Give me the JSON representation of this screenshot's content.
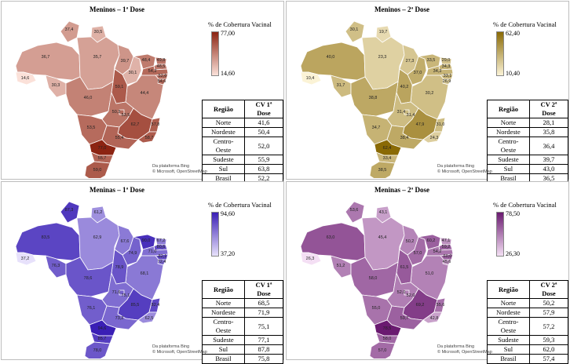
{
  "legend_title": "% de Cobertura Vacinal",
  "credit_line1": "Da plataforma Bing",
  "credit_line2": "© Microsoft, OpenStreetMap",
  "table_header_region": "Região",
  "panels": [
    {
      "title": "Meninos –  1ª Dose",
      "legend_max": "77,00",
      "legend_min": "14,60",
      "color_dark": "#8c2412",
      "color_light": "#fbe1d9",
      "table_header_cv": "CV 1ª Dose",
      "rows": [
        {
          "region": "Norte",
          "value": "41,6"
        },
        {
          "region": "Nordeste",
          "value": "50,4"
        },
        {
          "region": "Centro-Oeste",
          "value": "52,0"
        },
        {
          "region": "Sudeste",
          "value": "55,9"
        },
        {
          "region": "Sul",
          "value": "63,8"
        },
        {
          "region": "Brasil",
          "value": "52,2"
        }
      ],
      "state_values": {
        "RR": "37,4",
        "AP": "30,5",
        "AM": "36,7",
        "PA": "35,7",
        "AC": "14,6",
        "RO": "30,3",
        "MA": "39,7",
        "PI": "30,1",
        "CE": "48,4",
        "RN": "49,8",
        "PB": "48,5",
        "PE": "54,3",
        "AL": "52,6",
        "SE": "54,6",
        "BA": "44,4",
        "TO": "59,1",
        "MT": "46,0",
        "GO": "50,3",
        "DF": "53,5",
        "MS": "53,5",
        "MG": "62,7",
        "ES": "57,8",
        "RJ": "58,7",
        "SP": "55,4",
        "PR": "77,0",
        "SC": "55,7",
        "RS": "59,0"
      }
    },
    {
      "title": "Meninos –  2ª Dose",
      "legend_max": "62,40",
      "legend_min": "10,40",
      "color_dark": "#8a6a05",
      "color_light": "#fbf3d6",
      "table_header_cv": "CV 2ª Dose",
      "rows": [
        {
          "region": "Norte",
          "value": "28,1"
        },
        {
          "region": "Nordeste",
          "value": "35,8"
        },
        {
          "region": "Centro-Oeste",
          "value": "36,4"
        },
        {
          "region": "Sudeste",
          "value": "39,7"
        },
        {
          "region": "Sul",
          "value": "43,0"
        },
        {
          "region": "Brasil",
          "value": "36,5"
        }
      ],
      "state_values": {
        "RR": "30,1",
        "AP": "19,7",
        "AM": "40,0",
        "PA": "23,3",
        "AC": "10,4",
        "RO": "31,7",
        "MA": "27,3",
        "PI": "37,0",
        "CE": "33,5",
        "RN": "29,0",
        "PB": "34,3",
        "PE": "34,3",
        "AL": "33,1",
        "SE": "26,9",
        "BA": "30,2",
        "TO": "40,2",
        "MT": "38,8",
        "GO": "31,4",
        "DF": "31,4",
        "MS": "34,7",
        "MG": "47,9",
        "ES": "31,0",
        "RJ": "24,3",
        "SP": "38,4",
        "PR": "62,4",
        "SC": "33,4",
        "RS": "38,5"
      }
    },
    {
      "title": "Meninas –  1ª Dose",
      "legend_max": "94,60",
      "legend_min": "37,20",
      "color_dark": "#3a1fb5",
      "color_light": "#e7e1fb",
      "table_header_cv": "CV 1ª Dose",
      "rows": [
        {
          "region": "Norte",
          "value": "68,5"
        },
        {
          "region": "Nordeste",
          "value": "71,9"
        },
        {
          "region": "Centro-Oeste",
          "value": "75,1"
        },
        {
          "region": "Sudeste",
          "value": "77,1"
        },
        {
          "region": "Sul",
          "value": "87,8"
        },
        {
          "region": "Brasil",
          "value": "75,8"
        }
      ],
      "state_values": {
        "RR": "87,3",
        "AP": "61,2",
        "AM": "83,5",
        "PA": "62,9",
        "AC": "37,2",
        "RO": "76,3",
        "MA": "67,6",
        "PI": "74,9",
        "CE": "90,0",
        "RN": "67,2",
        "PB": "80,6",
        "PE": "71,0",
        "AL": "82,1",
        "SE": "72,4",
        "BA": "68,1",
        "TO": "78,9",
        "MT": "78,6",
        "GO": "71,6",
        "DF": "75,1",
        "MS": "76,1",
        "MG": "85,5",
        "ES": "82,4",
        "RJ": "62,5",
        "SP": "73,2",
        "PR": "94,6",
        "SC": "85,7",
        "RS": "78,0"
      }
    },
    {
      "title": "Meninas –  2ª Dose",
      "legend_max": "78,50",
      "legend_min": "26,30",
      "color_dark": "#6a1a70",
      "color_light": "#f4dff4",
      "table_header_cv": "CV 2ª Dose",
      "rows": [
        {
          "region": "Norte",
          "value": "50,2"
        },
        {
          "region": "Nordeste",
          "value": "57,9"
        },
        {
          "region": "Centro-Oeste",
          "value": "57,2"
        },
        {
          "region": "Sudeste",
          "value": "59,3"
        },
        {
          "region": "Sul",
          "value": "62,0"
        },
        {
          "region": "Brasil",
          "value": "57,4"
        }
      ],
      "state_values": {
        "RR": "53,6",
        "AP": "43,1",
        "AM": "63,0",
        "PA": "45,4",
        "AC": "26,3",
        "RO": "51,2",
        "MA": "50,2",
        "PI": "57,0",
        "CE": "60,2",
        "RN": "47,1",
        "PB": "59,2",
        "PE": "54,2",
        "AL": "60,0",
        "SE": "45,6",
        "BA": "51,0",
        "TO": "61,5",
        "MT": "58,0",
        "GO": "52,0",
        "DF": "52,0",
        "MS": "55,0",
        "MG": "69,2",
        "ES": "55,6",
        "RJ": "42,8",
        "SP": "59,7",
        "PR": "78,5",
        "SC": "58,0",
        "RS": "57,0"
      }
    }
  ]
}
